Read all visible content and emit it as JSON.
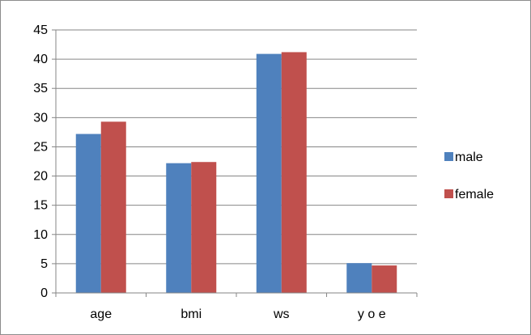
{
  "chart_data": {
    "type": "bar",
    "title": "",
    "xlabel": "",
    "ylabel": "",
    "categories": [
      "age",
      "bmi",
      "ws",
      "y o e"
    ],
    "series": [
      {
        "name": "male",
        "values": [
          27.2,
          22.2,
          40.9,
          5.1
        ],
        "color": "#4f81bd"
      },
      {
        "name": "female",
        "values": [
          29.3,
          22.4,
          41.2,
          4.7
        ],
        "color": "#c0504d"
      }
    ],
    "ylim": [
      0,
      45
    ],
    "yticks": [
      0,
      5,
      10,
      15,
      20,
      25,
      30,
      35,
      40,
      45
    ],
    "grid": true,
    "legend_position": "right"
  }
}
